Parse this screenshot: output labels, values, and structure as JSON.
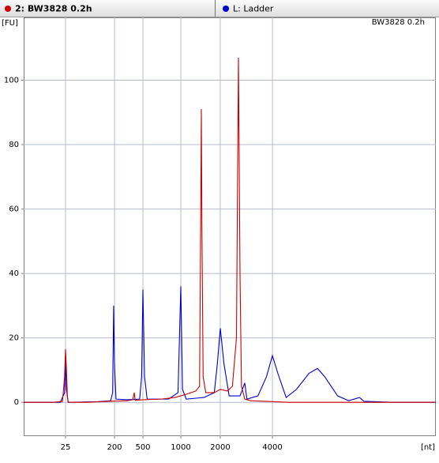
{
  "chart_data": {
    "type": "line",
    "subtitle": "BW3828 0.2h",
    "ylabel": "[FU]",
    "xlabel": "[nt]",
    "xlog": true,
    "grid": true,
    "xlim": [
      4.2,
      35000
    ],
    "xticks": [
      25,
      200,
      500,
      1000,
      2000,
      4000
    ],
    "ylim": [
      -10.5,
      119.5
    ],
    "yticks": [
      0,
      20,
      40,
      60,
      80,
      100
    ],
    "series": [
      {
        "name": "2: BW3828 0.2h",
        "color": "#cc0000",
        "x": [
          4.2,
          15,
          22,
          24,
          25,
          26,
          27,
          28,
          60,
          150,
          300,
          360,
          378,
          390,
          500,
          700,
          900,
          1100,
          1300,
          1390,
          1420,
          1434,
          1448,
          1480,
          1550,
          1800,
          2000,
          2200,
          2350,
          2480,
          2546,
          2600,
          2650,
          2770,
          3000,
          5000,
          35000
        ],
        "values": [
          0,
          0,
          0.3,
          8,
          16.5,
          10,
          2,
          0,
          0,
          0.3,
          0.5,
          0.8,
          3,
          0.6,
          0.8,
          1,
          1.5,
          2.5,
          3.5,
          5,
          60,
          91,
          55,
          8,
          3,
          3,
          4,
          3.5,
          5,
          20,
          107,
          40,
          5,
          1,
          0.5,
          0,
          0
        ]
      },
      {
        "name": "L: Ladder",
        "color": "#0000cc",
        "x": [
          4.2,
          20,
          24,
          25,
          26,
          28,
          100,
          170,
          185,
          193,
          200,
          210,
          300,
          450,
          480,
          500,
          515,
          540,
          800,
          950,
          1000,
          1030,
          1100,
          1500,
          1800,
          1900,
          2000,
          2100,
          2250,
          2600,
          2770,
          2850,
          3300,
          3700,
          4000,
          4300,
          4800,
          5500,
          6500,
          7270,
          8000,
          9500,
          11000,
          12700,
          13500,
          20000,
          35000
        ],
        "values": [
          0,
          0,
          3,
          13,
          4,
          0,
          0.2,
          0.5,
          3,
          30,
          12,
          1,
          0.8,
          1,
          8,
          35,
          8,
          1,
          1,
          3,
          36,
          4,
          1,
          1.5,
          3,
          12,
          23,
          12,
          2,
          2,
          6,
          1,
          2,
          8,
          14.5,
          9,
          1.5,
          4,
          9,
          10.5,
          8,
          2,
          0.5,
          1.5,
          0.3,
          0,
          0
        ]
      }
    ]
  }
}
